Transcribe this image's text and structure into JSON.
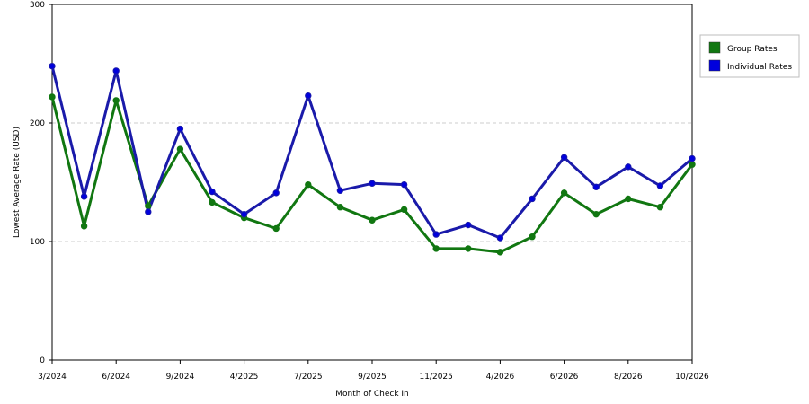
{
  "chart_data": {
    "type": "line",
    "xlabel": "Month of Check In",
    "ylabel": "Lowest Average Rate (USD)",
    "ylim": [
      0,
      300
    ],
    "y_ticks": [
      0,
      100,
      200,
      300
    ],
    "grid": "horizontal dashed",
    "legend_placement": "right",
    "x_tick_labels": [
      "3/2024",
      "6/2024",
      "9/2024",
      "4/2025",
      "7/2025",
      "9/2025",
      "11/2025",
      "4/2026",
      "6/2026",
      "8/2026",
      "10/2026"
    ],
    "x_tick_point_indices": [
      0,
      2,
      4,
      6,
      8,
      10,
      12,
      14,
      16,
      18,
      20
    ],
    "point_count": 21,
    "series": [
      {
        "name": "Group Rates",
        "color": "#117711",
        "legend_color": "#117711",
        "values": [
          222,
          113,
          219,
          130,
          178,
          133,
          120,
          111,
          148,
          129,
          118,
          127,
          94,
          94,
          91,
          104,
          141,
          123,
          136,
          129,
          165
        ]
      },
      {
        "name": "Individual Rates",
        "color": "#1a1aaa",
        "legend_color": "#0000dd",
        "values": [
          248,
          138,
          244,
          125,
          195,
          142,
          123,
          141,
          223,
          143,
          149,
          148,
          106,
          114,
          103,
          136,
          171,
          146,
          163,
          147,
          170
        ]
      }
    ]
  }
}
